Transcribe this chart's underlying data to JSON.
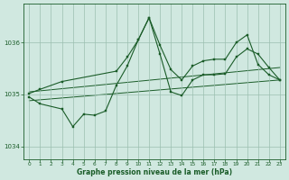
{
  "bg_color": "#d0e8e0",
  "grid_color": "#9bbfb0",
  "line_color": "#1a5c28",
  "xlabel": "Graphe pression niveau de la mer (hPa)",
  "ylim": [
    1033.75,
    1036.75
  ],
  "xlim": [
    -0.5,
    23.5
  ],
  "yticks": [
    1034,
    1035,
    1036
  ],
  "xticks": [
    0,
    1,
    2,
    3,
    4,
    5,
    6,
    7,
    8,
    9,
    10,
    11,
    12,
    13,
    14,
    15,
    16,
    17,
    18,
    19,
    20,
    21,
    22,
    23
  ],
  "line1_x": [
    0,
    1,
    3,
    4,
    5,
    6,
    7,
    8,
    9,
    10,
    11,
    12,
    13,
    14,
    15,
    16,
    17,
    18,
    19,
    20,
    21,
    22,
    23
  ],
  "line1_y": [
    1034.95,
    1034.82,
    1034.72,
    1034.38,
    1034.62,
    1034.6,
    1034.68,
    1035.18,
    1035.55,
    1036.05,
    1036.48,
    1035.78,
    1035.05,
    1034.98,
    1035.28,
    1035.38,
    1035.38,
    1035.4,
    1035.72,
    1035.88,
    1035.78,
    1035.52,
    1035.28
  ],
  "line2_x": [
    0,
    1,
    3,
    8,
    9,
    10,
    11,
    12,
    13,
    14,
    15,
    16,
    17,
    18,
    19,
    20,
    21,
    22,
    23
  ],
  "line2_y": [
    1035.02,
    1035.1,
    1035.25,
    1035.45,
    1035.72,
    1036.05,
    1036.48,
    1035.95,
    1035.48,
    1035.28,
    1035.55,
    1035.65,
    1035.68,
    1035.68,
    1036.0,
    1036.15,
    1035.58,
    1035.38,
    1035.28
  ],
  "trend1_x": [
    0,
    23
  ],
  "trend1_y": [
    1035.05,
    1035.52
  ],
  "trend2_x": [
    0,
    23
  ],
  "trend2_y": [
    1034.88,
    1035.28
  ]
}
